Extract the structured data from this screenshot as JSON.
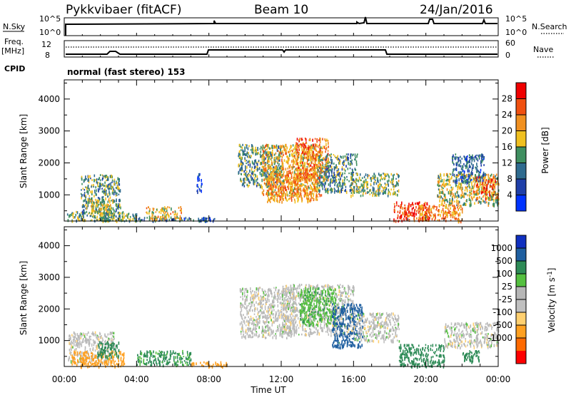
{
  "header": {
    "station": "Pykkvibaer (fitACF)",
    "beam": "Beam 10",
    "date": "24/Jan/2016"
  },
  "top_panels": {
    "nsky_label": "N.Sky",
    "nsky_ticks": [
      "10^5",
      "10^0"
    ],
    "nsearch_label": "N.Search",
    "nsearch_ticks": [
      "10^5",
      "10^0"
    ],
    "freq_label": [
      "Freq.",
      "[MHz]"
    ],
    "freq_ticks": [
      "12",
      "8"
    ],
    "nave_label": "Nave",
    "nave_ticks": [
      "60",
      "0"
    ],
    "cpid_label": "CPID",
    "cpid_text": "normal (fast stereo) 153"
  },
  "colors": {
    "power": [
      "#0033ff",
      "#1f3fa8",
      "#2f6b8f",
      "#3f8f60",
      "#f0c020",
      "#f09020",
      "#f05010",
      "#f00000"
    ],
    "velocity": [
      "#ff0000",
      "#ff6a00",
      "#ffa020",
      "#ffd070",
      "#c0c0c0",
      "#b6b6b6",
      "#55c040",
      "#2e8b57",
      "#1f5fa0",
      "#1030c0"
    ]
  },
  "chart_data": [
    {
      "type": "heatmap",
      "title": "",
      "xlabel": "Time UT",
      "ylabel": "Slant Range [km]",
      "xlim": [
        0,
        24
      ],
      "ylim": [
        180,
        4600
      ],
      "x_tick_labels": [
        "00:00",
        "04:00",
        "08:00",
        "12:00",
        "16:00",
        "20:00",
        "00:00"
      ],
      "y_tick_labels": [
        "1000",
        "2000",
        "3000",
        "4000"
      ],
      "y_ticks": [
        1000,
        2000,
        3000,
        4000
      ],
      "colorbar_label": "Power [dB]",
      "colorbar_ticks": [
        "4",
        "8",
        "12",
        "16",
        "20",
        "24",
        "28"
      ],
      "colorbar_range": [
        0,
        32
      ],
      "scatter_regions": [
        {
          "t": [
            0.1,
            3.3
          ],
          "r": [
            200,
            500
          ],
          "v": 14
        },
        {
          "t": [
            0.9,
            3.1
          ],
          "r": [
            400,
            1650
          ],
          "v": 13
        },
        {
          "t": [
            1.4,
            2.7
          ],
          "r": [
            450,
            900
          ],
          "v": 18
        },
        {
          "t": [
            1.9,
            4.0
          ],
          "r": [
            200,
            450
          ],
          "v": 14
        },
        {
          "t": [
            3.8,
            8.4
          ],
          "r": [
            200,
            320
          ],
          "v": 8
        },
        {
          "t": [
            4.5,
            6.5
          ],
          "r": [
            250,
            650
          ],
          "v": 19
        },
        {
          "t": [
            7.3,
            7.6
          ],
          "r": [
            1100,
            1700
          ],
          "v": 6
        },
        {
          "t": [
            9.6,
            12.0
          ],
          "r": [
            1300,
            2600
          ],
          "v": 13
        },
        {
          "t": [
            10.9,
            14.2
          ],
          "r": [
            1000,
            2600
          ],
          "v": 20
        },
        {
          "t": [
            12.8,
            14.6
          ],
          "r": [
            1500,
            2800
          ],
          "v": 24
        },
        {
          "t": [
            11.2,
            14.0
          ],
          "r": [
            800,
            1700
          ],
          "v": 22
        },
        {
          "t": [
            14.0,
            16.2
          ],
          "r": [
            1100,
            2300
          ],
          "v": 12
        },
        {
          "t": [
            15.8,
            18.5
          ],
          "r": [
            1000,
            1700
          ],
          "v": 15
        },
        {
          "t": [
            18.2,
            20.2
          ],
          "r": [
            200,
            800
          ],
          "v": 28
        },
        {
          "t": [
            19.6,
            22.0
          ],
          "r": [
            200,
            700
          ],
          "v": 22
        },
        {
          "t": [
            20.6,
            24.0
          ],
          "r": [
            700,
            1700
          ],
          "v": 17
        },
        {
          "t": [
            22.6,
            24.0
          ],
          "r": [
            900,
            1600
          ],
          "v": 24
        },
        {
          "t": [
            21.4,
            23.2
          ],
          "r": [
            1400,
            2300
          ],
          "v": 9
        }
      ]
    },
    {
      "type": "heatmap",
      "title": "",
      "xlabel": "Time UT",
      "ylabel": "Slant Range [km]",
      "xlim": [
        0,
        24
      ],
      "ylim": [
        180,
        4600
      ],
      "x_tick_labels": [
        "00:00",
        "04:00",
        "08:00",
        "12:00",
        "16:00",
        "20:00",
        "00:00"
      ],
      "y_tick_labels": [
        "1000",
        "2000",
        "3000",
        "4000"
      ],
      "y_ticks": [
        1000,
        2000,
        3000,
        4000
      ],
      "colorbar_label": "Velocity [m s-1]",
      "colorbar_ticks": [
        "1000",
        "500",
        "100",
        "25",
        "-25",
        "-100",
        "-500",
        "-1000"
      ],
      "scatter_regions": [
        {
          "t": [
            0.2,
            2.8
          ],
          "r": [
            300,
            1300
          ],
          "v": 0
        },
        {
          "t": [
            0.4,
            3.3
          ],
          "r": [
            200,
            700
          ],
          "v": -150
        },
        {
          "t": [
            1.8,
            3.0
          ],
          "r": [
            500,
            1000
          ],
          "v": 150
        },
        {
          "t": [
            4.0,
            7.0
          ],
          "r": [
            250,
            700
          ],
          "v": 120
        },
        {
          "t": [
            7.0,
            9.0
          ],
          "r": [
            200,
            350
          ],
          "v": -200
        },
        {
          "t": [
            9.7,
            12.8
          ],
          "r": [
            1100,
            2700
          ],
          "v": 0
        },
        {
          "t": [
            12.0,
            16.0
          ],
          "r": [
            1200,
            2800
          ],
          "v": 0
        },
        {
          "t": [
            13.0,
            15.0
          ],
          "r": [
            1500,
            2700
          ],
          "v": 80
        },
        {
          "t": [
            14.8,
            16.5
          ],
          "r": [
            800,
            2200
          ],
          "v": 700
        },
        {
          "t": [
            16.0,
            18.5
          ],
          "r": [
            1000,
            1900
          ],
          "v": 0
        },
        {
          "t": [
            18.5,
            21.0
          ],
          "r": [
            200,
            900
          ],
          "v": 150
        },
        {
          "t": [
            21.0,
            24.0
          ],
          "r": [
            800,
            1600
          ],
          "v": 0
        },
        {
          "t": [
            22.0,
            23.0
          ],
          "r": [
            300,
            700
          ],
          "v": 300
        }
      ]
    }
  ]
}
